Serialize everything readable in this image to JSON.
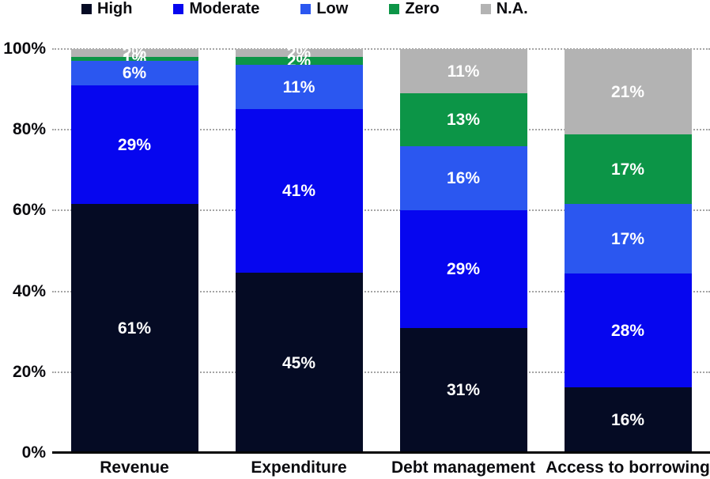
{
  "chart_data": {
    "type": "bar",
    "variant": "stacked-100-percent",
    "title": "",
    "categories": [
      "Revenue",
      "Expenditure",
      "Debt management",
      "Access to borrowing"
    ],
    "series": [
      {
        "name": "High",
        "color": "#050b24",
        "values": [
          61,
          45,
          31,
          16
        ],
        "labels": [
          "61%",
          "45%",
          "31%",
          "16%"
        ]
      },
      {
        "name": "Moderate",
        "color": "#0606ef",
        "values": [
          29,
          41,
          29,
          28
        ],
        "labels": [
          "29%",
          "41%",
          "29%",
          "28%"
        ]
      },
      {
        "name": "Low",
        "color": "#2b57f0",
        "values": [
          6,
          11,
          16,
          17
        ],
        "labels": [
          "6%",
          "11%",
          "16%",
          "17%"
        ]
      },
      {
        "name": "Zero",
        "color": "#0c9547",
        "values": [
          1,
          2,
          13,
          17
        ],
        "labels": [
          "1%",
          "2%",
          "13%",
          "17%"
        ]
      },
      {
        "name": "N.A.",
        "color": "#b3b3b3",
        "values": [
          2,
          2,
          11,
          21
        ],
        "labels": [
          "2%",
          "2%",
          "11%",
          "21%"
        ]
      }
    ],
    "y_axis": {
      "ticks": [
        0,
        20,
        40,
        60,
        80,
        100
      ],
      "tick_labels": [
        "0%",
        "20%",
        "40%",
        "60%",
        "80%",
        "100%"
      ],
      "ylim": [
        0,
        100
      ]
    },
    "x_axis": {
      "labels": [
        "Revenue",
        "Expenditure",
        "Debt management",
        "Access to borrowing"
      ]
    },
    "grid": {
      "horizontal": true,
      "style": "dotted",
      "color": "#a5a5a5"
    },
    "legend_position": "top",
    "bar_label_color": "#ffffff"
  }
}
